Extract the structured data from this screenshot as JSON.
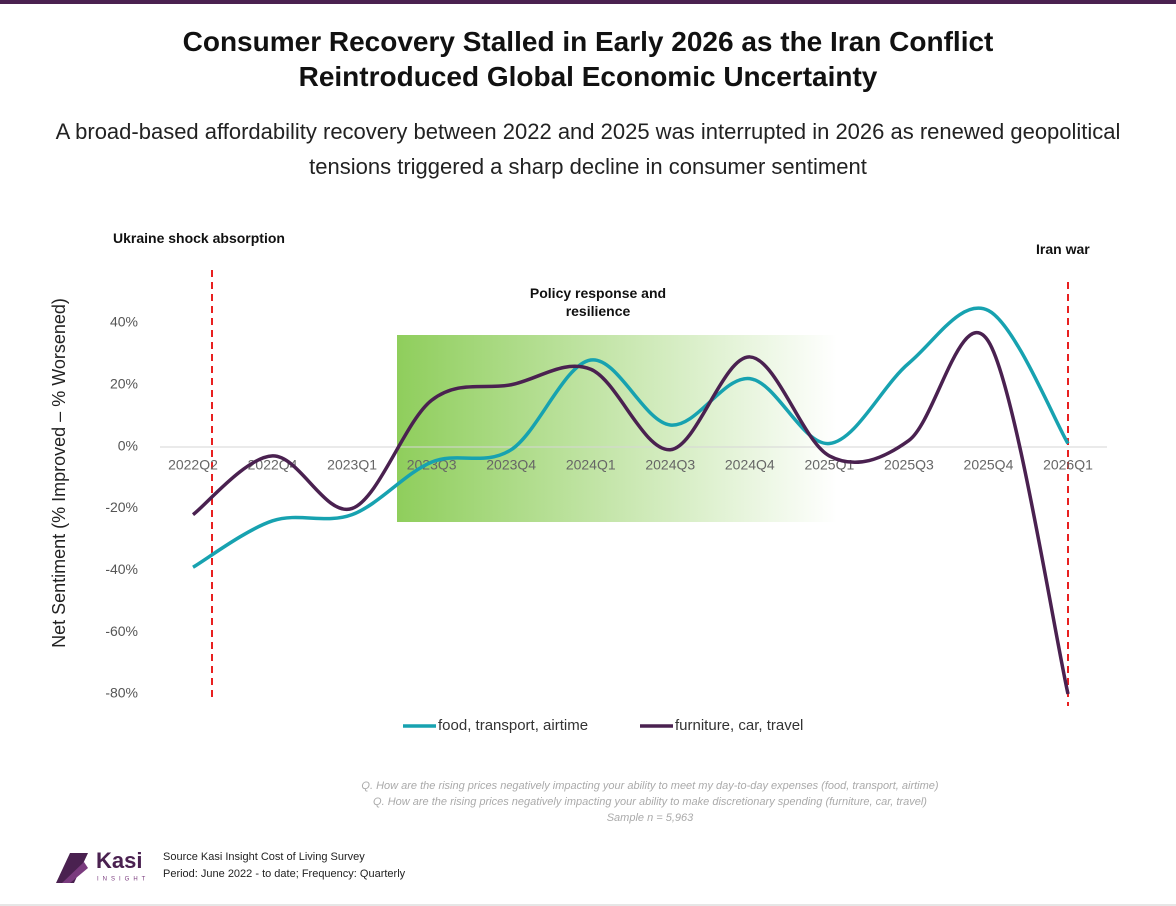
{
  "chart_data": {
    "type": "line",
    "title": "Consumer Recovery Stalled in Early 2026 as the Iran Conflict Reintroduced Global Economic Uncertainty",
    "subtitle": "A broad-based affordability recovery between 2022 and 2025 was interrupted in 2026 as renewed geopolitical tensions triggered a sharp decline in consumer sentiment",
    "y_label": "Net Sentiment (% Improved – % Worsened)",
    "categories": [
      "2022Q2",
      "2022Q4",
      "2023Q1",
      "2023Q3",
      "2023Q4",
      "2024Q1",
      "2024Q3",
      "2024Q4",
      "2025Q1",
      "2025Q3",
      "2025Q4",
      "2026Q1"
    ],
    "series": [
      {
        "name": "food, transport, airtime",
        "color": "#17a2b0",
        "values": [
          -39,
          -24,
          -22,
          -5,
          -1,
          28,
          7,
          22,
          1,
          27,
          44,
          1
        ]
      },
      {
        "name": "furniture, car, travel",
        "color": "#4a2150",
        "values": [
          -22,
          -3,
          -20,
          15,
          20,
          25,
          -1,
          29,
          -3,
          2,
          34,
          -80
        ]
      }
    ],
    "ylim": [
      -80,
      50
    ],
    "yticks": [
      {
        "value": -80,
        "label": "-80%"
      },
      {
        "value": -60,
        "label": "-60%"
      },
      {
        "value": -40,
        "label": "-40%"
      },
      {
        "value": -20,
        "label": "-20%"
      },
      {
        "value": 0,
        "label": "0%"
      },
      {
        "value": 20,
        "label": "20%"
      },
      {
        "value": 40,
        "label": "40%"
      }
    ],
    "annotations": [
      "Ukraine shock absorption",
      "Policy response and resilience",
      "Iran war"
    ],
    "notes": [
      "Q. How are the rising prices negatively impacting your ability to meet my day-to-day expenses (food, transport, airtime)",
      "Q. How are the rising prices negatively impacting your ability to make discretionary spending (furniture, car, travel)",
      "Sample n = 5,963"
    ]
  },
  "footer": {
    "brand": "Kasi",
    "brand_sub": "INSIGHT",
    "source": "Source Kasi Insight Cost of Living Survey",
    "period": "Period: June 2022 - to date; Frequency: Quarterly"
  }
}
